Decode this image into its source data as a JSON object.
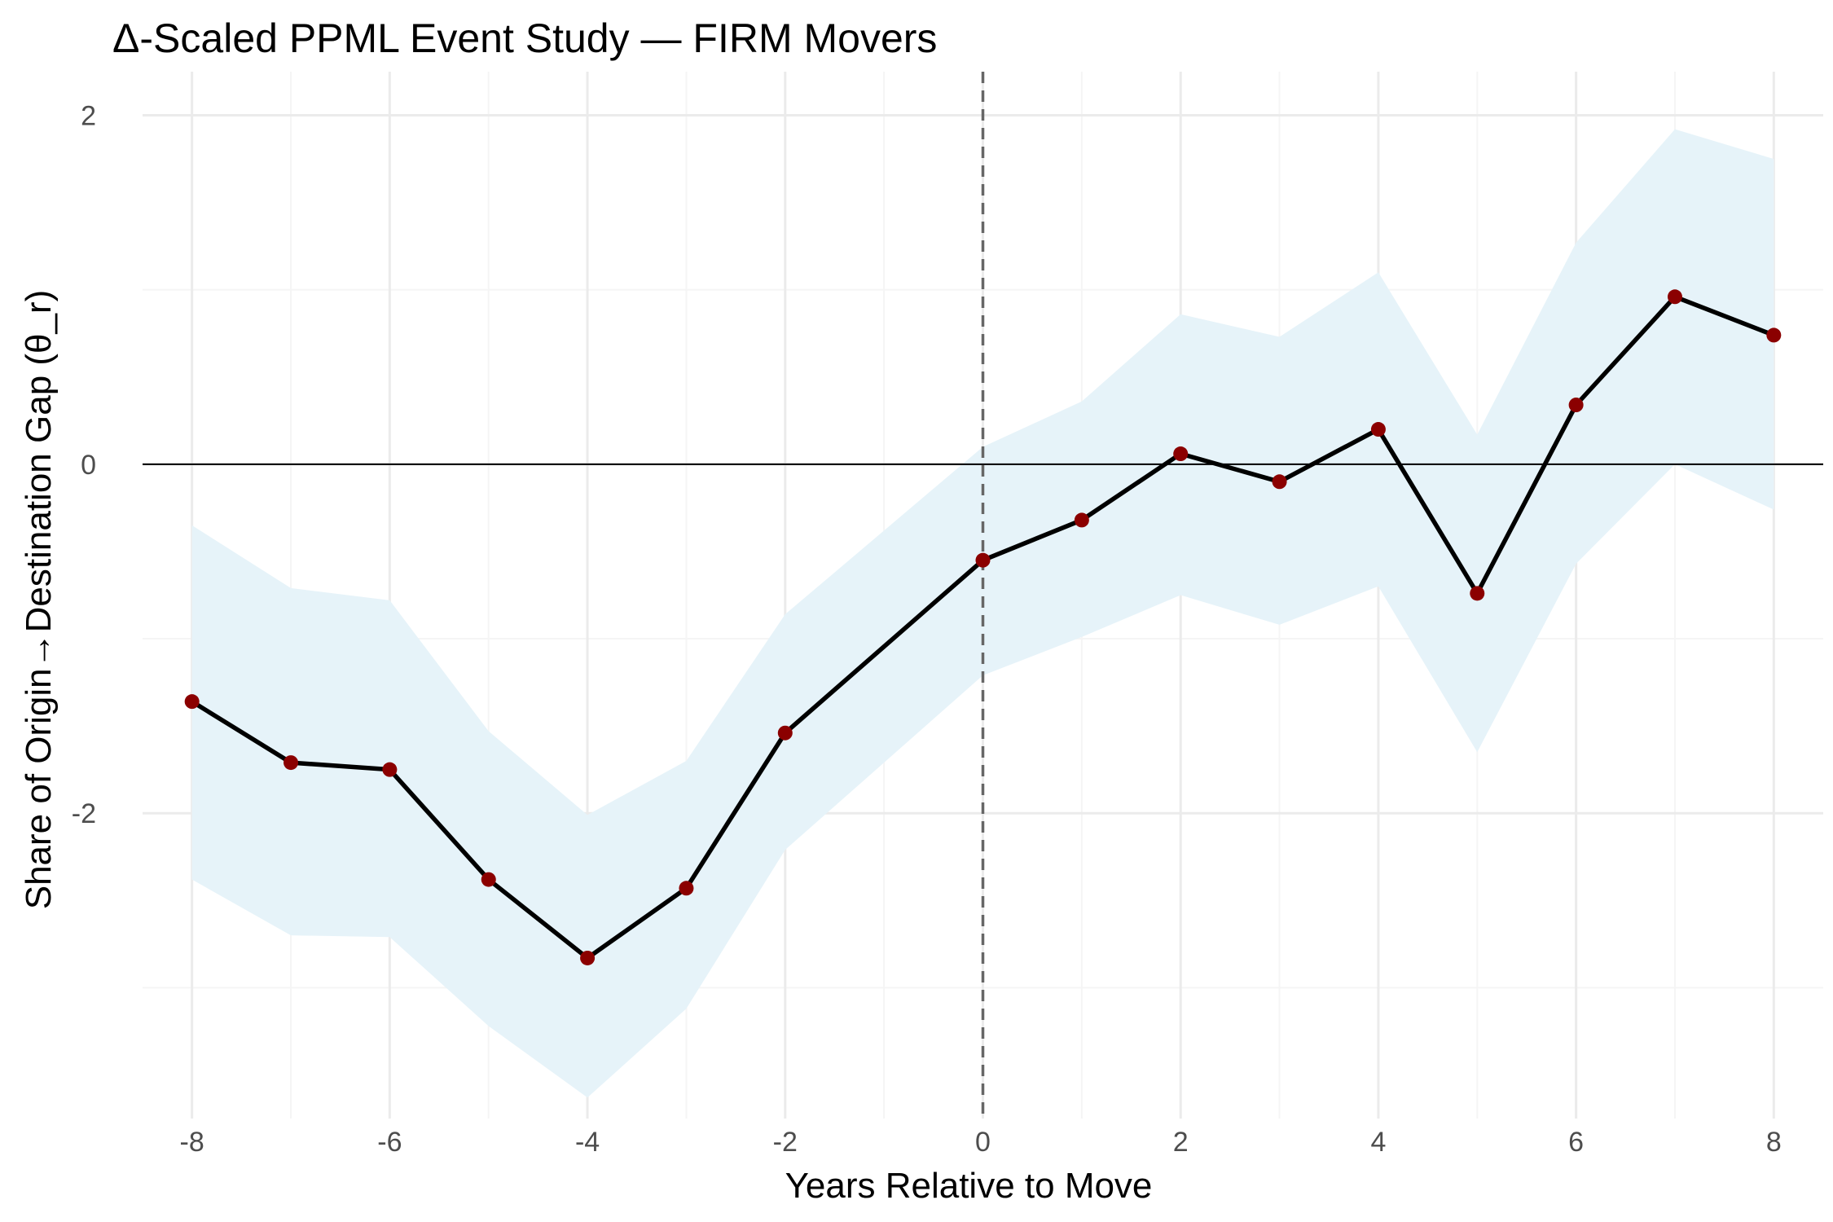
{
  "chart_data": {
    "type": "line",
    "title": "Δ-Scaled PPML Event Study — FIRM Movers",
    "xlabel": "Years Relative to Move",
    "ylabel": "Share of Origin→Destination Gap (θ_r)",
    "xlim": [
      -8.5,
      8.5
    ],
    "ylim": [
      -3.75,
      2.25
    ],
    "x_ticks": [
      -8,
      -6,
      -4,
      -2,
      0,
      2,
      4,
      6,
      8
    ],
    "x_tick_labels": [
      "-8",
      "-6",
      "-4",
      "-2",
      "0",
      "2",
      "4",
      "6",
      "8"
    ],
    "y_ticks": [
      -2,
      0,
      2
    ],
    "y_tick_labels": [
      "-2",
      "0",
      "2"
    ],
    "grid": true,
    "reference_lines": {
      "horizontal_y": 0,
      "vertical_x": 0
    },
    "x": [
      -8,
      -7,
      -6,
      -5,
      -4,
      -3,
      -2,
      0,
      1,
      2,
      3,
      4,
      5,
      6,
      7,
      8
    ],
    "series": [
      {
        "values": [
          -1.36,
          -1.71,
          -1.75,
          -2.38,
          -2.83,
          -2.43,
          -1.54,
          -0.55,
          -0.32,
          0.06,
          -0.1,
          0.2,
          -0.74,
          0.34,
          0.96,
          0.74
        ],
        "ci_lower": [
          -2.38,
          -2.7,
          -2.71,
          -3.22,
          -3.63,
          -3.12,
          -2.21,
          -1.21,
          -0.99,
          -0.75,
          -0.92,
          -0.7,
          -1.65,
          -0.57,
          0.0,
          -0.26
        ],
        "ci_upper": [
          -0.35,
          -0.71,
          -0.78,
          -1.53,
          -2.01,
          -1.7,
          -0.86,
          0.1,
          0.36,
          0.86,
          0.73,
          1.1,
          0.17,
          1.27,
          1.92,
          1.75
        ]
      }
    ],
    "colors": {
      "line": "#000000",
      "points": "#8b0000",
      "ci_band": "#e6f3f9",
      "grid_major": "#ebebeb",
      "grid_minor": "#f5f5f5",
      "ref_vertical": "#666666"
    }
  }
}
